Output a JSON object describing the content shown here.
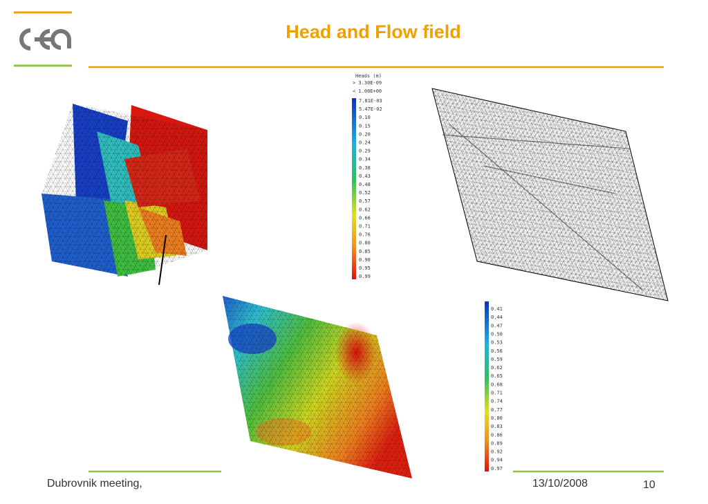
{
  "header": {
    "title": "Head and Flow field"
  },
  "legend_heads": {
    "title": "Heads (m)",
    "above": "> 3.30E-09",
    "below": "< 1.00E+00",
    "labels": [
      "7.81E-03",
      "5.47E-02",
      "0.10",
      "0.15",
      "0.20",
      "0.24",
      "0.29",
      "0.34",
      "0.38",
      "0.43",
      "0.48",
      "0.52",
      "0.57",
      "0.62",
      "0.66",
      "0.71",
      "0.76",
      "0.80",
      "0.85",
      "0.90",
      "0.95",
      "0.99"
    ]
  },
  "legend_velocity": {
    "labels": [
      "0.41",
      "0.44",
      "0.47",
      "0.50",
      "0.53",
      "0.56",
      "0.59",
      "0.62",
      "0.65",
      "0.68",
      "0.71",
      "0.74",
      "0.77",
      "0.80",
      "0.83",
      "0.86",
      "0.89",
      "0.92",
      "0.94",
      "0.97"
    ]
  },
  "footer": {
    "event": "Dubrovnik meeting,",
    "date": "13/10/2008",
    "page": "10"
  }
}
